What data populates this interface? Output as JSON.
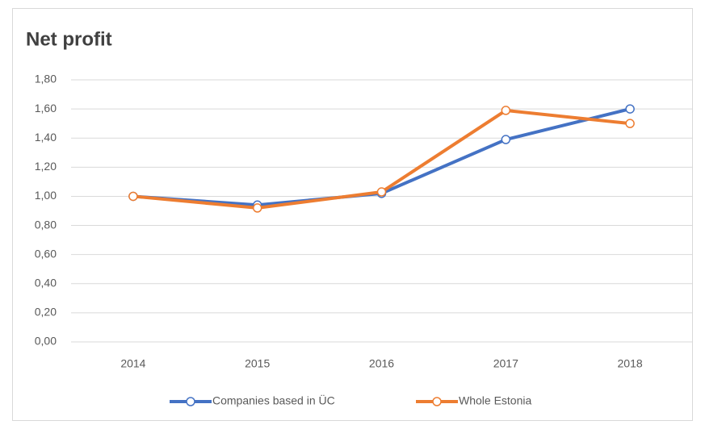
{
  "chart_data": {
    "type": "line",
    "title": "Net profit",
    "categories": [
      "2014",
      "2015",
      "2016",
      "2017",
      "2018"
    ],
    "series": [
      {
        "name": "Companies based in ÜC",
        "color": "#4472c4",
        "values": [
          1.0,
          0.94,
          1.02,
          1.39,
          1.6
        ]
      },
      {
        "name": "Whole Estonia",
        "color": "#ed7d31",
        "values": [
          1.0,
          0.92,
          1.03,
          1.59,
          1.5
        ]
      }
    ],
    "ylim": [
      0,
      1.8
    ],
    "yticks": [
      {
        "value": 0,
        "label": "0,00"
      },
      {
        "value": 0.2,
        "label": "0,20"
      },
      {
        "value": 0.4,
        "label": "0,40"
      },
      {
        "value": 0.6,
        "label": "0,60"
      },
      {
        "value": 0.8,
        "label": "0,80"
      },
      {
        "value": 1.0,
        "label": "1,00"
      },
      {
        "value": 1.2,
        "label": "1,20"
      },
      {
        "value": 1.4,
        "label": "1,40"
      },
      {
        "value": 1.6,
        "label": "1,60"
      },
      {
        "value": 1.8,
        "label": "1,80"
      }
    ],
    "grid": true,
    "legend": "bottom"
  }
}
